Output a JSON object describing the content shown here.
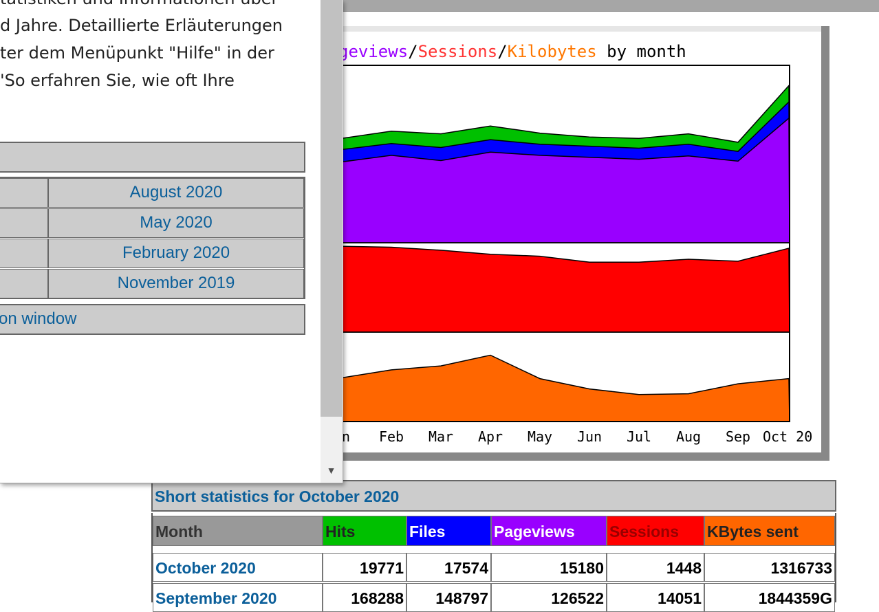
{
  "popup": {
    "text_lines": [
      "tatistiken und Informationen über",
      "d Jahre. Detaillierte Erläuterungen",
      "ter dem Menüpunkt \"Hilfe\" in der",
      "'So erfahren Sie, wie oft Ihre"
    ],
    "periods": [
      "August 2020",
      "May 2020",
      "February 2020",
      "November 2019"
    ],
    "window_link": "on window"
  },
  "chart": {
    "title_parts": [
      "geviews",
      "/",
      "Sessions",
      "/",
      "Kilobytes",
      " by month"
    ]
  },
  "chart_data": {
    "type": "area",
    "x": [
      "an",
      "Feb",
      "Mar",
      "Apr",
      "May",
      "Jun",
      "Jul",
      "Aug",
      "Sep",
      "Oct 20"
    ],
    "series": [
      {
        "name": "Hits",
        "color": "#00c000",
        "values": [
          160000,
          171000,
          167000,
          179000,
          168000,
          162000,
          160000,
          167000,
          154000,
          241000
        ]
      },
      {
        "name": "Files",
        "color": "#0000ff",
        "values": [
          143000,
          152000,
          146000,
          158000,
          151000,
          148000,
          145000,
          151000,
          140000,
          216000
        ]
      },
      {
        "name": "Pageviews",
        "color": "#9900ff",
        "values": [
          124000,
          134000,
          126000,
          139000,
          134000,
          131000,
          128000,
          133000,
          125000,
          191000
        ]
      },
      {
        "name": "Sessions",
        "color": "#ff0000",
        "values": [
          17200,
          17000,
          16400,
          15600,
          15200,
          14000,
          14000,
          14600,
          14200,
          16800
        ]
      },
      {
        "name": "Kilobytes",
        "color": "#ff6600",
        "values": [
          1100000,
          1300000,
          1400000,
          1670000,
          1080000,
          820000,
          680000,
          700000,
          950000,
          1080000
        ]
      }
    ]
  },
  "stats": {
    "caption": "Short statistics for October 2020",
    "headers": [
      {
        "label": "Month",
        "bg": "#999999",
        "color": "#333333"
      },
      {
        "label": "Hits",
        "bg": "#00c000",
        "color": "#222222"
      },
      {
        "label": "Files",
        "bg": "#0000ff",
        "color": "#ffffff"
      },
      {
        "label": "Pageviews",
        "bg": "#9900ff",
        "color": "#ffffff"
      },
      {
        "label": "Sessions",
        "bg": "#ff0000",
        "color": "#990000"
      },
      {
        "label": "KBytes sent",
        "bg": "#ff6600",
        "color": "#222222"
      }
    ],
    "rows": [
      {
        "month": "October 2020",
        "hits": "19771",
        "files": "17574",
        "pageviews": "15180",
        "sessions": "1448",
        "kbytes": "1316733"
      },
      {
        "month": "September 2020",
        "hits": "168288",
        "files": "148797",
        "pageviews": "126522",
        "sessions": "14051",
        "kbytes": "1844359G"
      }
    ]
  }
}
